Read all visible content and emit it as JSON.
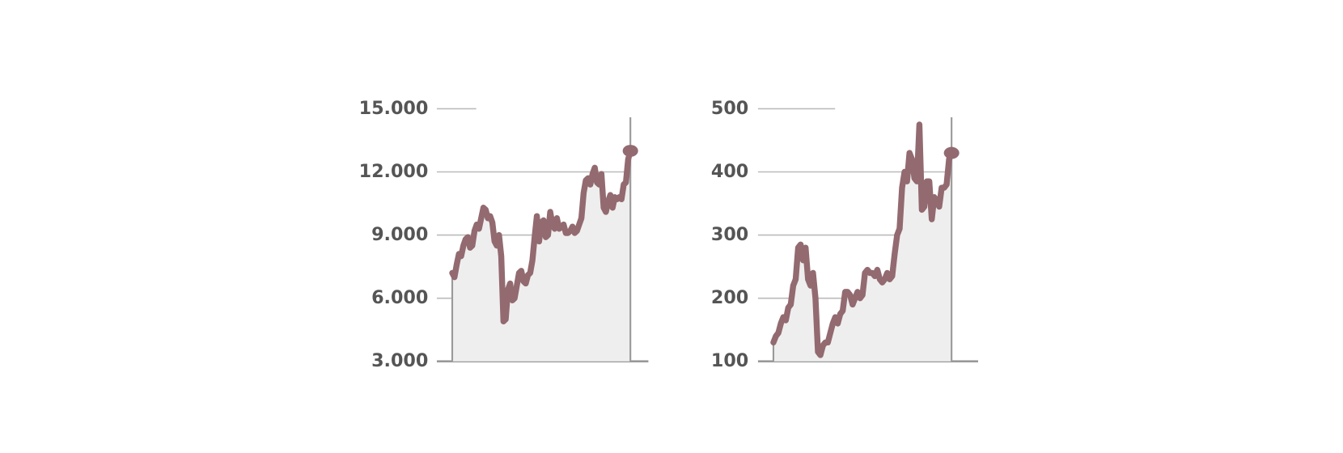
{
  "chart_data": [
    {
      "type": "area",
      "color": "#926a70",
      "fill": "#efeeee",
      "ylim": [
        3000,
        15000
      ],
      "yticks": [
        {
          "value": 3000,
          "label": "3.000"
        },
        {
          "value": 6000,
          "label": "6.000"
        },
        {
          "value": 9000,
          "label": "9.000"
        },
        {
          "value": 12000,
          "label": "12.000"
        },
        {
          "value": 15000,
          "label": "15.000"
        }
      ],
      "grid": true,
      "values": [
        7200,
        7000,
        7600,
        8100,
        8000,
        8500,
        8800,
        8900,
        8400,
        8500,
        9200,
        9500,
        9300,
        9800,
        10300,
        10200,
        9800,
        9900,
        9600,
        8700,
        8500,
        9000,
        8000,
        4900,
        5000,
        6400,
        6700,
        5900,
        6000,
        6600,
        7200,
        7300,
        6800,
        6700,
        7100,
        7200,
        7800,
        8900,
        9900,
        8700,
        9600,
        9700,
        8900,
        9000,
        10100,
        9500,
        9300,
        9800,
        9300,
        9400,
        9500,
        9100,
        9100,
        9200,
        9400,
        9100,
        9200,
        9500,
        9800,
        11000,
        11600,
        11700,
        11400,
        11900,
        12200,
        11500,
        11400,
        11900,
        10300,
        10100,
        10600,
        10900,
        10300,
        10800,
        10700,
        10800,
        10700,
        11400,
        11500,
        12600,
        13000
      ]
    },
    {
      "type": "area",
      "color": "#926a70",
      "fill": "#efeeee",
      "ylim": [
        100,
        500
      ],
      "yticks": [
        100,
        200,
        300,
        400,
        500
      ],
      "grid": true,
      "values": [
        130,
        140,
        145,
        160,
        170,
        165,
        185,
        190,
        220,
        230,
        280,
        285,
        260,
        280,
        230,
        220,
        240,
        200,
        115,
        110,
        125,
        130,
        130,
        145,
        160,
        170,
        160,
        175,
        180,
        210,
        210,
        205,
        190,
        200,
        210,
        200,
        205,
        240,
        245,
        240,
        240,
        235,
        245,
        230,
        225,
        230,
        240,
        230,
        235,
        270,
        300,
        310,
        375,
        400,
        385,
        430,
        420,
        390,
        385,
        475,
        340,
        345,
        385,
        385,
        325,
        360,
        355,
        345,
        375,
        375,
        380,
        420,
        430
      ]
    }
  ]
}
